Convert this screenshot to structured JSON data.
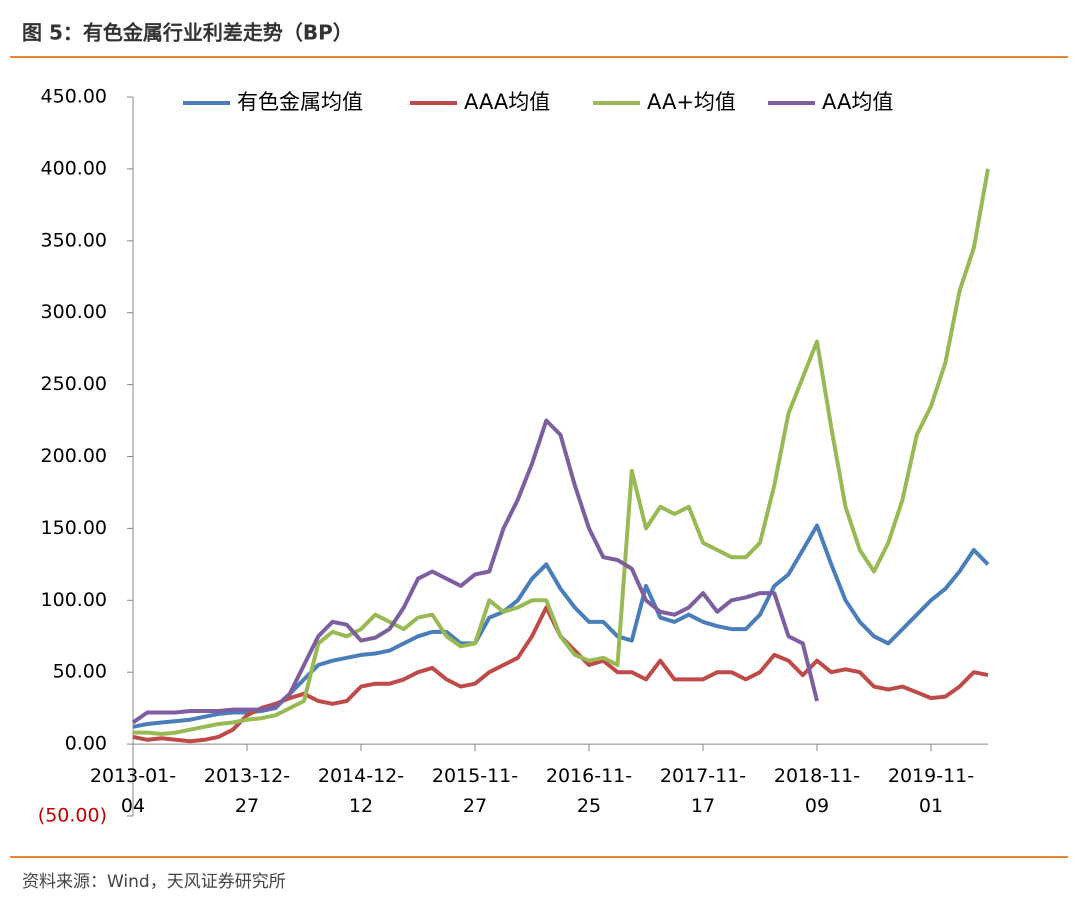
{
  "chart_data": {
    "type": "line",
    "title": "图 5：有色金属行业利差走势（BP）",
    "source": "资料来源：Wind，天风证券研究所",
    "categories": [
      "2013-01-04",
      null,
      null,
      null,
      null,
      null,
      null,
      null,
      "2013-12-27",
      null,
      null,
      null,
      null,
      null,
      null,
      null,
      "2014-12-12",
      null,
      null,
      null,
      null,
      null,
      null,
      null,
      "2015-11-27",
      null,
      null,
      null,
      null,
      null,
      null,
      null,
      "2016-11-25",
      null,
      null,
      null,
      null,
      null,
      null,
      null,
      "2017-11-17",
      null,
      null,
      null,
      null,
      null,
      null,
      null,
      "2018-11-09",
      null,
      null,
      null,
      null,
      null,
      null,
      null,
      "2019-11-01",
      null,
      null,
      null,
      null
    ],
    "ylim": [
      -50,
      450
    ],
    "yticks": [
      {
        "value": -50,
        "label": "(50.00)"
      },
      {
        "value": 0,
        "label": "0.00"
      },
      {
        "value": 50,
        "label": "50.00"
      },
      {
        "value": 100,
        "label": "100.00"
      },
      {
        "value": 150,
        "label": "150.00"
      },
      {
        "value": 200,
        "label": "200.00"
      },
      {
        "value": 250,
        "label": "250.00"
      },
      {
        "value": 300,
        "label": "300.00"
      },
      {
        "value": 350,
        "label": "350.00"
      },
      {
        "value": 400,
        "label": "400.00"
      },
      {
        "value": 450,
        "label": "450.00"
      }
    ],
    "negative_label_color": "#c00000",
    "grid": false,
    "legend": "top",
    "series": [
      {
        "name": "有色金属均值",
        "color": "#4a7ebb",
        "values": [
          12,
          14,
          15,
          16,
          17,
          19,
          21,
          22,
          22,
          23,
          25,
          35,
          45,
          55,
          58,
          60,
          62,
          63,
          65,
          70,
          75,
          78,
          78,
          70,
          70,
          88,
          92,
          100,
          115,
          125,
          108,
          95,
          85,
          85,
          75,
          72,
          110,
          88,
          85,
          90,
          85,
          82,
          80,
          80,
          90,
          110,
          118,
          135,
          152,
          125,
          100,
          85,
          75,
          70,
          80,
          90,
          100,
          108,
          120,
          135,
          125
        ]
      },
      {
        "name": "AAA均值",
        "color": "#be4b48",
        "values": [
          5,
          3,
          4,
          3,
          2,
          3,
          5,
          10,
          20,
          25,
          28,
          32,
          35,
          30,
          28,
          30,
          40,
          42,
          42,
          45,
          50,
          53,
          45,
          40,
          42,
          50,
          55,
          60,
          75,
          95,
          75,
          65,
          55,
          58,
          50,
          50,
          45,
          58,
          45,
          45,
          45,
          50,
          50,
          45,
          50,
          62,
          58,
          48,
          58,
          50,
          52,
          50,
          40,
          38,
          40,
          36,
          32,
          33,
          40,
          50,
          48
        ]
      },
      {
        "name": "AA+均值",
        "color": "#98b954",
        "values": [
          8,
          8,
          7,
          8,
          10,
          12,
          14,
          15,
          17,
          18,
          20,
          25,
          30,
          70,
          78,
          75,
          80,
          90,
          85,
          80,
          88,
          90,
          75,
          68,
          70,
          100,
          92,
          95,
          100,
          100,
          75,
          62,
          58,
          60,
          55,
          190,
          150,
          165,
          160,
          165,
          140,
          135,
          130,
          130,
          140,
          180,
          230,
          255,
          280,
          220,
          165,
          135,
          120,
          140,
          170,
          215,
          235,
          265,
          315,
          345,
          400
        ]
      },
      {
        "name": "AA均值",
        "color": "#7d5fa0",
        "values": [
          15,
          22,
          22,
          22,
          23,
          23,
          23,
          24,
          24,
          24,
          26,
          35,
          55,
          75,
          85,
          83,
          72,
          74,
          80,
          95,
          115,
          120,
          115,
          110,
          118,
          120,
          150,
          170,
          195,
          225,
          215,
          180,
          150,
          130,
          128,
          122,
          100,
          92,
          90,
          95,
          105,
          92,
          100,
          102,
          105,
          105,
          75,
          70,
          30,
          null,
          null,
          null,
          null,
          null,
          null,
          null,
          null,
          null,
          null,
          null,
          null
        ]
      }
    ]
  }
}
